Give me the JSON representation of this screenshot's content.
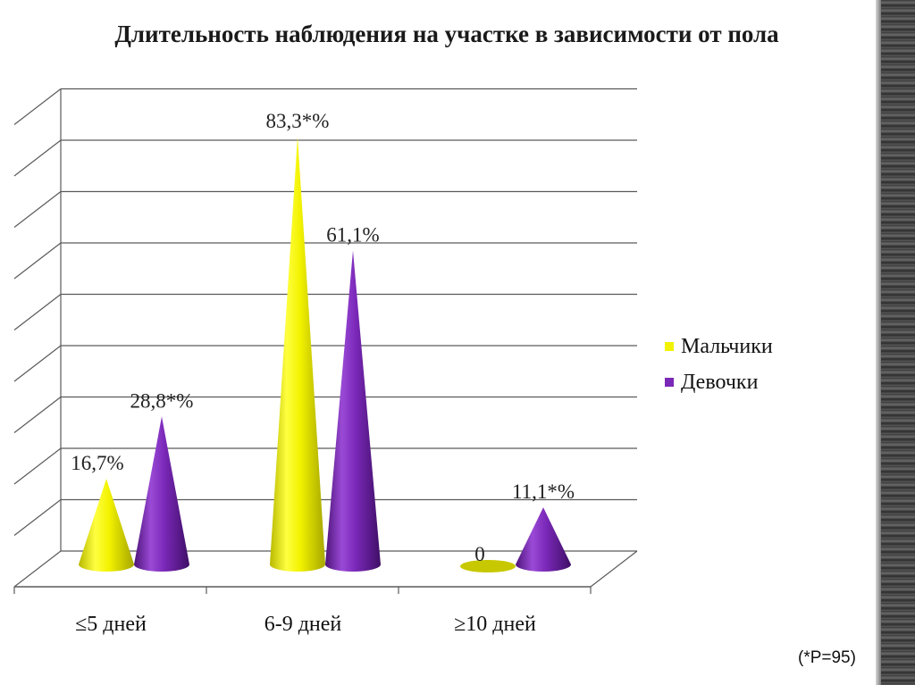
{
  "title": "Длительность наблюдения на участке в зависимости от пола",
  "footnote": "(*P=95)",
  "colors": {
    "boys": "#f2f200",
    "girls": "#7a28b8",
    "grid": "#5a5a5a"
  },
  "chart_data": {
    "type": "bar",
    "title": "Длительность наблюдения на участке в зависимости от пола",
    "categories": [
      "≤5 дней",
      "6-9 дней",
      "≥10 дней"
    ],
    "series": [
      {
        "name": "Мальчики",
        "values": [
          16.7,
          83.3,
          0
        ],
        "labels": [
          "16,7%",
          "83,3*%",
          "0"
        ],
        "color": "#f2f200"
      },
      {
        "name": "Девочки",
        "values": [
          28.8,
          61.1,
          11.1
        ],
        "labels": [
          "28,8*%",
          "61,1%",
          "11,1*%"
        ],
        "color": "#7a28b8"
      }
    ],
    "ylim": [
      0,
      90
    ],
    "grid": true,
    "legend_position": "right",
    "mark_shape": "cone"
  }
}
